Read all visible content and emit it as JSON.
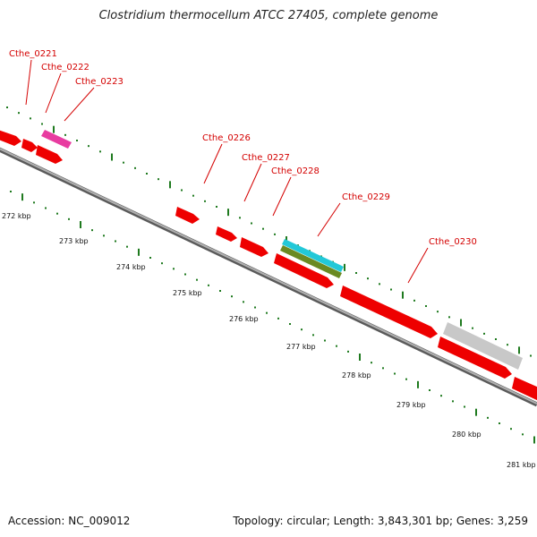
{
  "title": "Clostridium thermocellum ATCC 27405, complete genome",
  "footer": {
    "accession": "Accession: NC_009012",
    "summary": "Topology: circular; Length: 3,843,301 bp; Genes: 3,259"
  },
  "colors": {
    "gene": "#ee0000",
    "gene_alt_magenta": "#e83ca0",
    "gene_cyan": "#22c8d8",
    "gene_olive": "#6a8a22",
    "gene_grey": "#c8c8c8",
    "backbone": "#8a8a8a",
    "tick": "#1f7a1f",
    "label": "#d40000"
  },
  "gene_labels": [
    "Cthe_0221",
    "Cthe_0222",
    "Cthe_0223",
    "Cthe_0226",
    "Cthe_0227",
    "Cthe_0228",
    "Cthe_0229",
    "Cthe_0230"
  ],
  "scale_labels": [
    "272 kbp",
    "273 kbp",
    "274 kbp",
    "275 kbp",
    "276 kbp",
    "277 kbp",
    "278 kbp",
    "279 kbp",
    "280 kbp",
    "281 kbp"
  ]
}
